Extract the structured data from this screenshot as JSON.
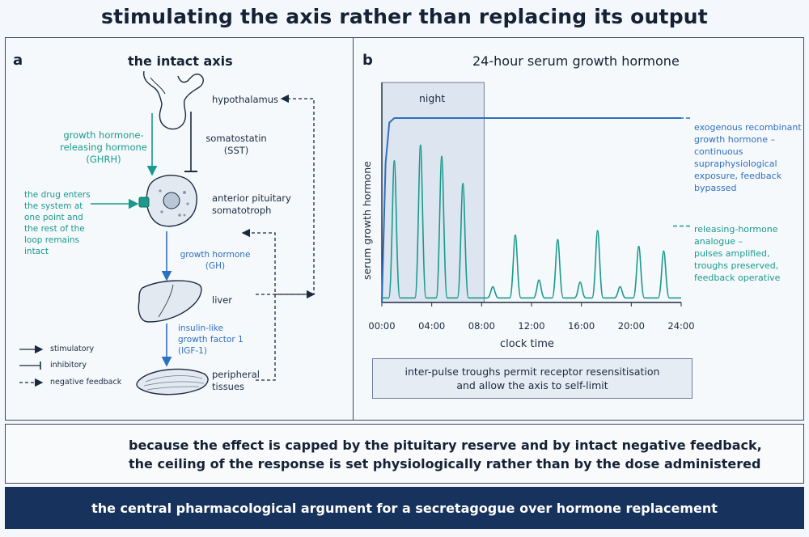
{
  "title": "stimulating the axis rather than replacing its output",
  "panel_a": {
    "letter": "a",
    "title": "the intact axis",
    "hypothalamus": "hypothalamus",
    "ghrh": "growth hormone-\nreleasing hormone\n(GHRH)",
    "sst": "somatostatin\n(SST)",
    "drug_note": "the drug enters\nthe system at\none point and\nthe rest of the\nloop remains\nintact",
    "pituitary": "anterior pituitary\nsomatotroph",
    "gh": "growth hormone\n(GH)",
    "liver": "liver",
    "igf": "insulin-like\ngrowth factor 1\n(IGF-1)",
    "tissues": "peripheral\ntissues",
    "legend": {
      "stimulatory": "stimulatory",
      "inhibitory": "inhibitory",
      "negative_feedback": "negative feedback"
    },
    "colors": {
      "teal": "#1a9a8c",
      "blue": "#2f6fbf",
      "ink": "#1b2a3f"
    }
  },
  "panel_b": {
    "letter": "b",
    "title": "24-hour serum growth hormone",
    "night_label": "night",
    "exogenous_label": "exogenous recombinant\ngrowth hormone –\ncontinuous\nsupraphysiological\nexposure, feedback\nbypassed",
    "analogue_label": "releasing-hormone\nanalogue –\npulses amplified,\ntroughs preserved,\nfeedback operative",
    "callout": "inter-pulse troughs permit receptor resensitisation\nand allow the axis to self-limit"
  },
  "chart_data": {
    "type": "line",
    "xlabel": "clock time",
    "ylabel": "serum growth hormone",
    "xlim": [
      0,
      24
    ],
    "x_ticks": [
      "00:00",
      "04:00",
      "08:00",
      "12:00",
      "16:00",
      "20:00",
      "24:00"
    ],
    "y_ticks": [],
    "night_band": [
      0,
      8.2
    ],
    "series": [
      {
        "name": "exogenous recombinant growth hormone",
        "color": "#2f6fbf",
        "points": [
          [
            0,
            0
          ],
          [
            0.3,
            0.62
          ],
          [
            0.6,
            0.8
          ],
          [
            1,
            0.82
          ],
          [
            24,
            0.82
          ]
        ]
      },
      {
        "name": "releasing-hormone analogue",
        "color": "#1a9a8c",
        "pulses": [
          [
            1,
            0.63
          ],
          [
            3.1,
            0.7
          ],
          [
            4.8,
            0.65
          ],
          [
            6.5,
            0.53
          ],
          [
            8.9,
            0.07
          ],
          [
            10.7,
            0.3
          ],
          [
            12.6,
            0.1
          ],
          [
            14.1,
            0.28
          ],
          [
            15.9,
            0.09
          ],
          [
            17.3,
            0.32
          ],
          [
            19.1,
            0.07
          ],
          [
            20.6,
            0.25
          ],
          [
            22.6,
            0.23
          ]
        ]
      }
    ]
  },
  "conclusion": {
    "icon": "balance-scale-icon",
    "text": "because the effect is capped by the pituitary reserve and by intact negative feedback,\nthe ceiling of the response is set physiologically rather than by the dose administered"
  },
  "banner": "the central pharmacological argument for a secretagogue over hormone replacement"
}
